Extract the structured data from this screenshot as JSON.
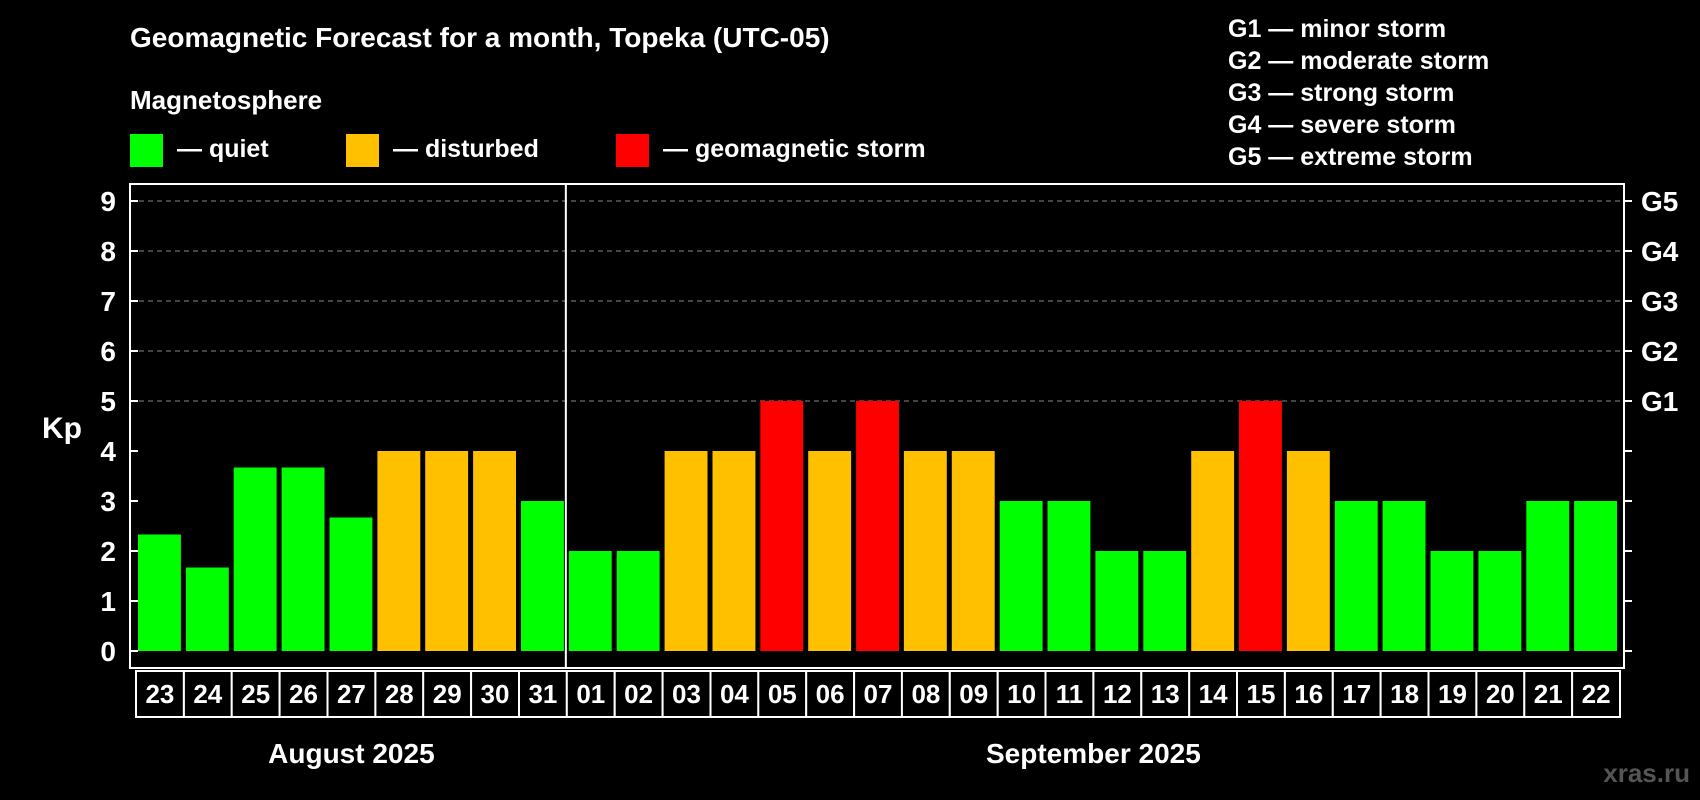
{
  "title": "Geomagnetic Forecast for a month, Topeka (UTC-05)",
  "legend": {
    "heading": "Magnetosphere",
    "items": [
      {
        "label": "— quiet",
        "color": "#00ff00"
      },
      {
        "label": "— disturbed",
        "color": "#ffc000"
      },
      {
        "label": "— geomagnetic storm",
        "color": "#ff0000"
      }
    ]
  },
  "storm_scale": [
    "G1 — minor storm",
    "G2 — moderate storm",
    "G3 — strong storm",
    "G4 — severe storm",
    "G5 — extreme storm"
  ],
  "watermark": "xras.ru",
  "chart_data": {
    "type": "bar",
    "title": "Geomagnetic Forecast for a month, Topeka (UTC-05)",
    "ylabel": "Kp",
    "ylim": [
      0,
      9
    ],
    "yticks": [
      "0",
      "1",
      "2",
      "3",
      "4",
      "5",
      "6",
      "7",
      "8",
      "9"
    ],
    "right_axis": [
      {
        "kp": 5,
        "label": "G1"
      },
      {
        "kp": 6,
        "label": "G2"
      },
      {
        "kp": 7,
        "label": "G3"
      },
      {
        "kp": 8,
        "label": "G4"
      },
      {
        "kp": 9,
        "label": "G5"
      }
    ],
    "categories": [
      "23",
      "24",
      "25",
      "26",
      "27",
      "28",
      "29",
      "30",
      "31",
      "01",
      "02",
      "03",
      "04",
      "05",
      "06",
      "07",
      "08",
      "09",
      "10",
      "11",
      "12",
      "13",
      "14",
      "15",
      "16",
      "17",
      "18",
      "19",
      "20",
      "21",
      "22"
    ],
    "values": [
      2.33,
      1.67,
      3.67,
      3.67,
      2.67,
      4,
      4,
      4,
      3,
      2,
      2,
      4,
      4,
      5,
      4,
      5,
      4,
      4,
      3,
      3,
      2,
      2,
      4,
      5,
      4,
      3,
      3,
      2,
      2,
      3,
      3
    ],
    "levels": [
      "quiet",
      "quiet",
      "quiet",
      "quiet",
      "quiet",
      "disturbed",
      "disturbed",
      "disturbed",
      "quiet",
      "quiet",
      "quiet",
      "disturbed",
      "disturbed",
      "storm",
      "disturbed",
      "storm",
      "disturbed",
      "disturbed",
      "quiet",
      "quiet",
      "quiet",
      "quiet",
      "disturbed",
      "storm",
      "disturbed",
      "quiet",
      "quiet",
      "quiet",
      "quiet",
      "quiet",
      "quiet"
    ],
    "level_colors": {
      "quiet": "#00ff00",
      "disturbed": "#ffc000",
      "storm": "#ff0000"
    },
    "months": [
      {
        "label": "August 2025",
        "count": 9
      },
      {
        "label": "September 2025",
        "count": 22
      }
    ]
  }
}
